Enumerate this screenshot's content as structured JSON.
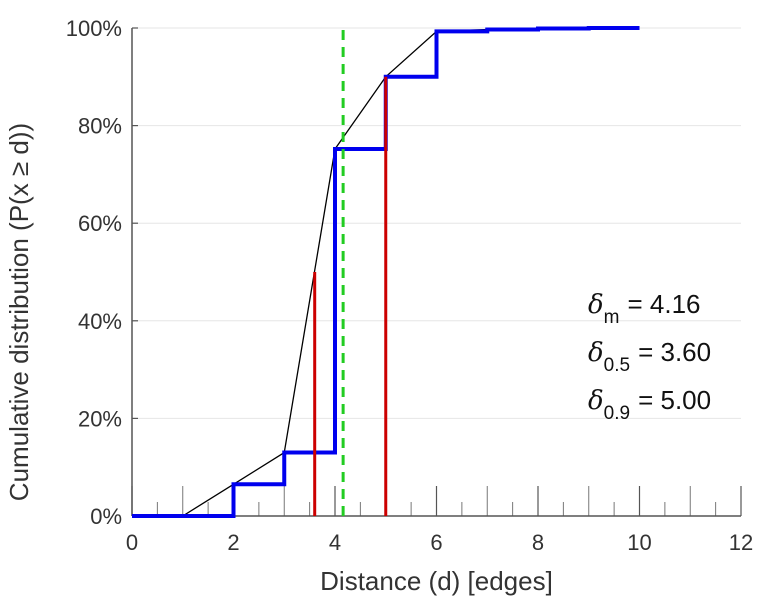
{
  "chart_data": {
    "type": "line",
    "title": "",
    "xlabel": "Distance (d) [edges]",
    "ylabel": "Cumulative distribution (P(x ≥ d))",
    "xlim": [
      0,
      12
    ],
    "ylim": [
      0,
      100
    ],
    "xticks": [
      "0",
      "2",
      "4",
      "6",
      "8",
      "10",
      "12"
    ],
    "yticks": [
      "0%",
      "20%",
      "40%",
      "60%",
      "80%",
      "100%"
    ],
    "ytick_values": [
      0,
      20,
      40,
      60,
      80,
      100
    ],
    "xtick_values": [
      0,
      2,
      4,
      6,
      8,
      10,
      12
    ],
    "grid": "horizontal",
    "series": [
      {
        "name": "step-cdf",
        "kind": "step",
        "color": "#0000ee",
        "x": [
          0,
          1,
          2,
          3,
          4,
          5,
          6,
          7,
          8,
          9,
          10
        ],
        "y": [
          0,
          0,
          6.5,
          13,
          75.2,
          90,
          99.3,
          99.7,
          99.9,
          100,
          100
        ]
      },
      {
        "name": "interpolated-cdf",
        "kind": "line",
        "color": "#000000",
        "x": [
          0,
          1,
          2,
          3,
          4,
          5,
          6,
          7,
          8,
          9,
          10
        ],
        "y": [
          0,
          0,
          6.5,
          13,
          75.2,
          90,
          99.3,
          99.7,
          99.9,
          100,
          100
        ]
      }
    ],
    "markers": [
      {
        "name": "median-line",
        "kind": "vertical",
        "color": "#cc0000",
        "x": 3.6,
        "y_top": 50
      },
      {
        "name": "p90-line",
        "kind": "vertical",
        "color": "#cc0000",
        "x": 5.0,
        "y_top": 90
      },
      {
        "name": "mean-line",
        "kind": "vertical-dashed",
        "color": "#22cc22",
        "x": 4.16,
        "y_top": 100
      }
    ],
    "annotations": [
      {
        "symbol": "δ",
        "sub": "m",
        "text": "= 4.16"
      },
      {
        "symbol": "δ",
        "sub": "0.5",
        "text": "= 3.60"
      },
      {
        "symbol": "δ",
        "sub": "0.9",
        "text": "= 5.00"
      }
    ]
  }
}
